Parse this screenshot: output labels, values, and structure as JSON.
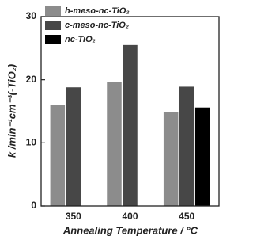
{
  "chart_data": {
    "type": "bar",
    "categories": [
      "350",
      "400",
      "450"
    ],
    "series": [
      {
        "name": "h-meso-nc-TiO₂",
        "color": "#8c8c8c",
        "values": [
          16.0,
          19.6,
          14.9
        ]
      },
      {
        "name": "c-meso-nc-TiO₂",
        "color": "#474747",
        "values": [
          18.8,
          25.5,
          18.9
        ]
      },
      {
        "name": "nc-TiO₂",
        "color": "#000000",
        "values": [
          null,
          null,
          15.6
        ]
      }
    ],
    "xlabel": "Annealing Temperature / °C",
    "ylabel": "k /min⁻¹cm⁻³(-TiO₂)",
    "ylim": [
      0,
      30
    ],
    "yticks": [
      0,
      10,
      20,
      30
    ],
    "legend": "upper left"
  }
}
